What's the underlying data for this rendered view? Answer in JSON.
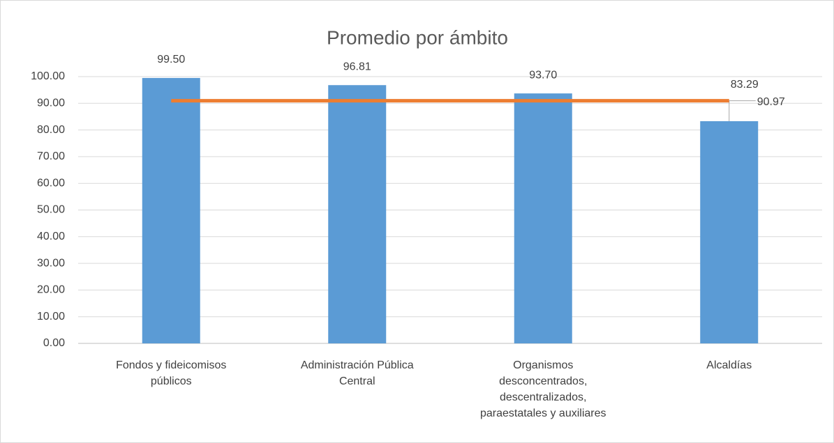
{
  "chart_data": {
    "type": "bar",
    "title": "Promedio por ámbito",
    "categories": [
      "Fondos y fideicomisos públicos",
      "Administración Pública Central",
      "Organismos desconcentrados, descentralizados, paraestatales y auxiliares",
      "Alcaldías"
    ],
    "series": [
      {
        "type": "bar",
        "color": "#5b9bd5",
        "values": [
          99.5,
          96.81,
          93.7,
          83.29
        ],
        "value_labels": [
          "99.50",
          "96.81",
          "93.70",
          "83.29"
        ]
      },
      {
        "type": "line",
        "color": "#ed7d31",
        "values": [
          90.97,
          90.97,
          90.97,
          90.97
        ],
        "value_labels": [
          null,
          null,
          null,
          "90.97"
        ]
      }
    ],
    "ylim": [
      0,
      100
    ],
    "yticks": [
      {
        "value": 0,
        "label": "0.00"
      },
      {
        "value": 10,
        "label": "10.00"
      },
      {
        "value": 20,
        "label": "20.00"
      },
      {
        "value": 30,
        "label": "30.00"
      },
      {
        "value": 40,
        "label": "40.00"
      },
      {
        "value": 50,
        "label": "50.00"
      },
      {
        "value": 60,
        "label": "60.00"
      },
      {
        "value": 70,
        "label": "70.00"
      },
      {
        "value": 80,
        "label": "80.00"
      },
      {
        "value": 90,
        "label": "90.00"
      },
      {
        "value": 100,
        "label": "100.00"
      }
    ],
    "grid": true
  }
}
